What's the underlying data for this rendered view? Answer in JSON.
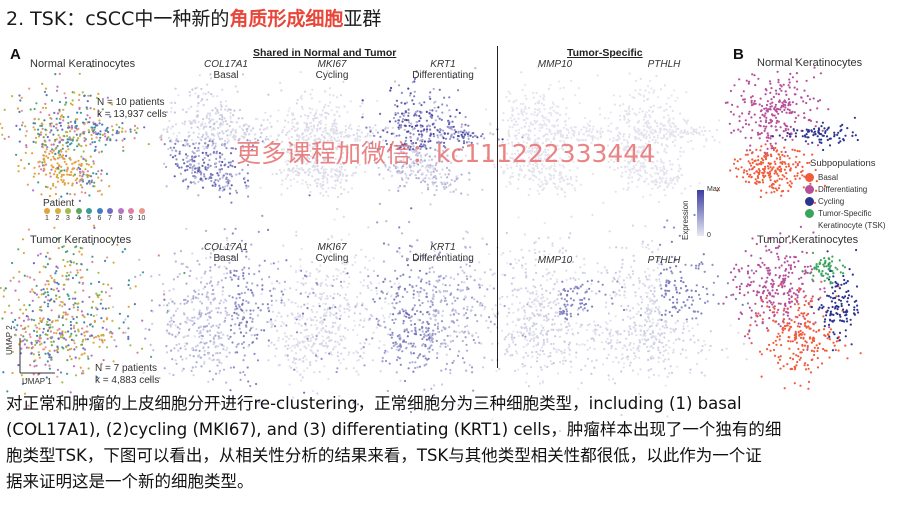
{
  "title": {
    "prefix": "2. TSK：cSCC中一种新的",
    "highlight": "角质形成细胞",
    "suffix": "亚群"
  },
  "watermark": "更多课程加微信：kc111222333444",
  "figure": {
    "panel_a": "A",
    "panel_b": "B",
    "header_shared": "Shared in Normal and Tumor",
    "header_tumor_specific": "Tumor-Specific",
    "normal_title": "Normal Keratinocytes",
    "tumor_title": "Tumor Keratinocytes",
    "normal_stats_n": "N = 10 patients",
    "normal_stats_k": "k = 13,937 cells",
    "tumor_stats_n": "N = 7 patients",
    "tumor_stats_k": "k = 4,883 cells",
    "patient_label": "Patient",
    "patient_numbers": [
      "1",
      "2",
      "3",
      "4",
      "5",
      "6",
      "7",
      "8",
      "9",
      "10"
    ],
    "patient_colors": [
      "#e5a13b",
      "#d4b13c",
      "#a7b94a",
      "#5aa862",
      "#3e9a9a",
      "#3f7fc0",
      "#6c6cc4",
      "#b773c4",
      "#df7fa3",
      "#e89a8a"
    ],
    "umap1": "UMAP 1",
    "umap2": "UMAP 2",
    "genes": [
      {
        "gene": "COL17A1",
        "type": "Basal"
      },
      {
        "gene": "MKI67",
        "type": "Cycling"
      },
      {
        "gene": "KRT1",
        "type": "Differentiating"
      },
      {
        "gene": "MMP10",
        "type": ""
      },
      {
        "gene": "PTHLH",
        "type": ""
      }
    ],
    "expression_label": "Expression",
    "expression_max": "Max",
    "expression_min": "0",
    "b_normal_title": "Normal Keratinocytes",
    "b_tumor_title": "Tumor Keratinocytes",
    "subpop_title": "Subpopulations",
    "subpops": [
      {
        "name": "Basal",
        "color": "#f25b3a"
      },
      {
        "name": "Differentiating",
        "color": "#b5509a"
      },
      {
        "name": "Cycling",
        "color": "#2b3590"
      },
      {
        "name": "Tumor-Specific",
        "name2": "Keratinocyte (TSK)",
        "color": "#3aa55a"
      }
    ]
  },
  "paragraph": {
    "line1": "对正常和肿瘤的上皮细胞分开进行re-clustering，正常细胞分为三种细胞类型，including (1) basal",
    "line2": "(COL17A1), (2)cycling (MKI67), and (3) differentiating (KRT1) cells，肿瘤样本出现了一个独有的细",
    "line3": "胞类型TSK，下图可以看出，从相关性分析的结果来看，TSK与其他类型相关性都很低，以此作为一个证",
    "line4": "据来证明这是一个新的细胞类型。"
  }
}
